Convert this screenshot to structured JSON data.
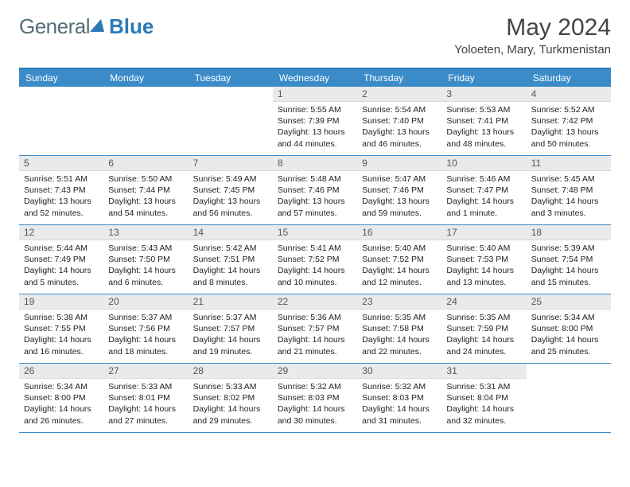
{
  "logo": {
    "general": "General",
    "blue": "Blue"
  },
  "title": {
    "month": "May 2024",
    "location": "Yoloeten, Mary, Turkmenistan"
  },
  "colors": {
    "header_bg": "#3b8bc9",
    "header_text": "#ffffff",
    "daynum_bg": "#e8eaec",
    "daynum_text": "#555555",
    "border": "#3b8bc9",
    "body_text": "#222222"
  },
  "dayNames": [
    "Sunday",
    "Monday",
    "Tuesday",
    "Wednesday",
    "Thursday",
    "Friday",
    "Saturday"
  ],
  "weeks": [
    [
      null,
      null,
      null,
      {
        "d": "1",
        "sr": "5:55 AM",
        "ss": "7:39 PM",
        "dl": "13 hours and 44 minutes."
      },
      {
        "d": "2",
        "sr": "5:54 AM",
        "ss": "7:40 PM",
        "dl": "13 hours and 46 minutes."
      },
      {
        "d": "3",
        "sr": "5:53 AM",
        "ss": "7:41 PM",
        "dl": "13 hours and 48 minutes."
      },
      {
        "d": "4",
        "sr": "5:52 AM",
        "ss": "7:42 PM",
        "dl": "13 hours and 50 minutes."
      }
    ],
    [
      {
        "d": "5",
        "sr": "5:51 AM",
        "ss": "7:43 PM",
        "dl": "13 hours and 52 minutes."
      },
      {
        "d": "6",
        "sr": "5:50 AM",
        "ss": "7:44 PM",
        "dl": "13 hours and 54 minutes."
      },
      {
        "d": "7",
        "sr": "5:49 AM",
        "ss": "7:45 PM",
        "dl": "13 hours and 56 minutes."
      },
      {
        "d": "8",
        "sr": "5:48 AM",
        "ss": "7:46 PM",
        "dl": "13 hours and 57 minutes."
      },
      {
        "d": "9",
        "sr": "5:47 AM",
        "ss": "7:46 PM",
        "dl": "13 hours and 59 minutes."
      },
      {
        "d": "10",
        "sr": "5:46 AM",
        "ss": "7:47 PM",
        "dl": "14 hours and 1 minute."
      },
      {
        "d": "11",
        "sr": "5:45 AM",
        "ss": "7:48 PM",
        "dl": "14 hours and 3 minutes."
      }
    ],
    [
      {
        "d": "12",
        "sr": "5:44 AM",
        "ss": "7:49 PM",
        "dl": "14 hours and 5 minutes."
      },
      {
        "d": "13",
        "sr": "5:43 AM",
        "ss": "7:50 PM",
        "dl": "14 hours and 6 minutes."
      },
      {
        "d": "14",
        "sr": "5:42 AM",
        "ss": "7:51 PM",
        "dl": "14 hours and 8 minutes."
      },
      {
        "d": "15",
        "sr": "5:41 AM",
        "ss": "7:52 PM",
        "dl": "14 hours and 10 minutes."
      },
      {
        "d": "16",
        "sr": "5:40 AM",
        "ss": "7:52 PM",
        "dl": "14 hours and 12 minutes."
      },
      {
        "d": "17",
        "sr": "5:40 AM",
        "ss": "7:53 PM",
        "dl": "14 hours and 13 minutes."
      },
      {
        "d": "18",
        "sr": "5:39 AM",
        "ss": "7:54 PM",
        "dl": "14 hours and 15 minutes."
      }
    ],
    [
      {
        "d": "19",
        "sr": "5:38 AM",
        "ss": "7:55 PM",
        "dl": "14 hours and 16 minutes."
      },
      {
        "d": "20",
        "sr": "5:37 AM",
        "ss": "7:56 PM",
        "dl": "14 hours and 18 minutes."
      },
      {
        "d": "21",
        "sr": "5:37 AM",
        "ss": "7:57 PM",
        "dl": "14 hours and 19 minutes."
      },
      {
        "d": "22",
        "sr": "5:36 AM",
        "ss": "7:57 PM",
        "dl": "14 hours and 21 minutes."
      },
      {
        "d": "23",
        "sr": "5:35 AM",
        "ss": "7:58 PM",
        "dl": "14 hours and 22 minutes."
      },
      {
        "d": "24",
        "sr": "5:35 AM",
        "ss": "7:59 PM",
        "dl": "14 hours and 24 minutes."
      },
      {
        "d": "25",
        "sr": "5:34 AM",
        "ss": "8:00 PM",
        "dl": "14 hours and 25 minutes."
      }
    ],
    [
      {
        "d": "26",
        "sr": "5:34 AM",
        "ss": "8:00 PM",
        "dl": "14 hours and 26 minutes."
      },
      {
        "d": "27",
        "sr": "5:33 AM",
        "ss": "8:01 PM",
        "dl": "14 hours and 27 minutes."
      },
      {
        "d": "28",
        "sr": "5:33 AM",
        "ss": "8:02 PM",
        "dl": "14 hours and 29 minutes."
      },
      {
        "d": "29",
        "sr": "5:32 AM",
        "ss": "8:03 PM",
        "dl": "14 hours and 30 minutes."
      },
      {
        "d": "30",
        "sr": "5:32 AM",
        "ss": "8:03 PM",
        "dl": "14 hours and 31 minutes."
      },
      {
        "d": "31",
        "sr": "5:31 AM",
        "ss": "8:04 PM",
        "dl": "14 hours and 32 minutes."
      },
      null
    ]
  ],
  "labels": {
    "sunrise": "Sunrise:",
    "sunset": "Sunset:",
    "daylight": "Daylight:"
  }
}
